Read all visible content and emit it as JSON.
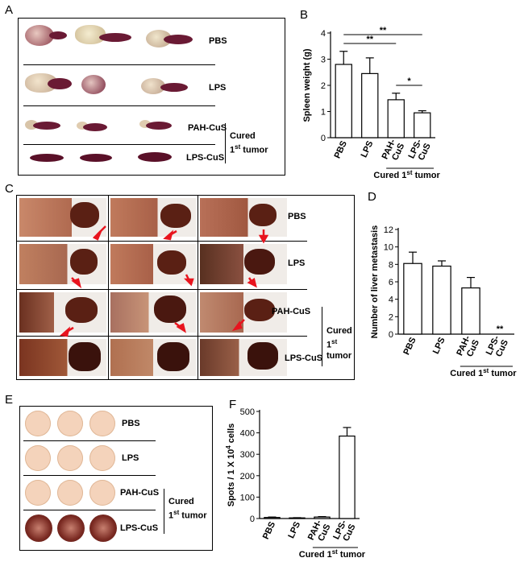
{
  "panels": {
    "A": {
      "label": "A",
      "groups": [
        "PBS",
        "LPS",
        "PAH-CuS",
        "LPS-CuS"
      ],
      "bracket_line1": "Cured",
      "bracket_line2_prefix": "1",
      "bracket_line2_sup": "st",
      "bracket_line2_suffix": " tumor"
    },
    "B": {
      "label": "B"
    },
    "C": {
      "label": "C",
      "groups": [
        "PBS",
        "LPS",
        "PAH-CuS",
        "LPS-CuS"
      ],
      "bracket_line1": "Cured",
      "bracket_line2_prefix": "1",
      "bracket_line2_sup": "st",
      "bracket_line2_suffix": " tumor"
    },
    "D": {
      "label": "D"
    },
    "E": {
      "label": "E",
      "groups": [
        "PBS",
        "LPS",
        "PAH-CuS",
        "LPS-CuS"
      ],
      "bracket_line1": "Cured",
      "bracket_line2_prefix": "1",
      "bracket_line2_sup": "st",
      "bracket_line2_suffix": " tumor"
    },
    "F": {
      "label": "F"
    }
  },
  "chart_data": [
    {
      "type": "bar",
      "panel": "B",
      "categories": [
        "PBS",
        "LPS",
        "PAH-CuS",
        "LPS-CuS"
      ],
      "values": [
        2.8,
        2.45,
        1.45,
        0.95
      ],
      "errors": [
        0.5,
        0.6,
        0.25,
        0.08
      ],
      "ylabel": "Spleen weight (g)",
      "ylim": [
        0,
        4
      ],
      "yticks": [
        0,
        1,
        2,
        3,
        4
      ],
      "group_label_prefix": "Cured 1",
      "group_label_sup": "st",
      "group_label_suffix": " tumor",
      "significance": [
        {
          "from": 0,
          "to": 3,
          "label": "**"
        },
        {
          "from": 0,
          "to": 2,
          "label": "**"
        },
        {
          "from": 2,
          "to": 3,
          "label": "*"
        }
      ],
      "colors": {
        "bar_fill": "#ffffff",
        "bar_stroke": "#000000"
      }
    },
    {
      "type": "bar",
      "panel": "D",
      "categories": [
        "PBS",
        "LPS",
        "PAH-CuS",
        "LPS-CuS"
      ],
      "values": [
        8.1,
        7.8,
        5.3,
        0
      ],
      "errors": [
        1.3,
        0.6,
        1.2,
        0
      ],
      "ylabel": "Number of liver metastasis",
      "ylim": [
        0,
        12
      ],
      "yticks": [
        0,
        2,
        4,
        6,
        8,
        10,
        12
      ],
      "group_label_prefix": "Cured 1",
      "group_label_sup": "st",
      "group_label_suffix": " tumor",
      "significance_marks": [
        {
          "index": 3,
          "label": "**"
        }
      ],
      "colors": {
        "bar_fill": "#ffffff",
        "bar_stroke": "#000000"
      }
    },
    {
      "type": "bar",
      "panel": "F",
      "categories": [
        "PBS",
        "LPS",
        "PAH-CuS",
        "LPS-CuS"
      ],
      "values": [
        5,
        3,
        7,
        385
      ],
      "errors": [
        2,
        1,
        2,
        40
      ],
      "ylabel_prefix": "Spots / 1 X 10",
      "ylabel_sup": "4",
      "ylabel_suffix": " cells",
      "ylim": [
        0,
        500
      ],
      "yticks": [
        0,
        100,
        200,
        300,
        400,
        500
      ],
      "group_label_prefix": "Cured 1",
      "group_label_sup": "st",
      "group_label_suffix": " tumor",
      "colors": {
        "bar_fill": "#ffffff",
        "bar_stroke": "#000000"
      }
    }
  ]
}
